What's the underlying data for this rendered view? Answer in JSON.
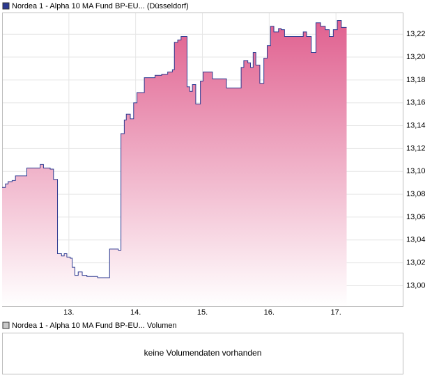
{
  "chart_data": {
    "type": "line",
    "drawstyle": "steps-post",
    "grid": true,
    "series": [
      {
        "name": "Nordea 1 - Alpha 10 MA Fund BP-EU... (Düsseldorf)",
        "color": "#2b3990",
        "area_color": "#e0608f",
        "x": [
          12.0,
          12.05,
          12.09,
          12.15,
          12.2,
          12.37,
          12.57,
          12.62,
          12.72,
          12.77,
          12.83,
          12.89,
          12.93,
          12.97,
          13.02,
          13.05,
          13.09,
          13.14,
          13.2,
          13.27,
          13.43,
          13.61,
          13.74,
          13.78,
          13.83,
          13.86,
          13.92,
          13.97,
          14.02,
          14.13,
          14.21,
          14.29,
          14.39,
          14.48,
          14.55,
          14.58,
          14.63,
          14.68,
          14.75,
          14.77,
          14.81,
          14.85,
          14.9,
          14.97,
          15.01,
          15.15,
          15.36,
          15.58,
          15.62,
          15.68,
          15.72,
          15.76,
          15.8,
          15.86,
          15.92,
          15.97,
          16.02,
          16.07,
          16.14,
          16.18,
          16.23,
          16.51,
          16.56,
          16.63,
          16.7,
          16.77,
          16.84,
          16.9,
          16.96,
          17.02,
          17.08,
          17.16
        ],
        "values": [
          13.086,
          13.089,
          13.091,
          13.092,
          13.096,
          13.103,
          13.106,
          13.103,
          13.102,
          13.093,
          13.028,
          13.026,
          13.028,
          13.025,
          13.024,
          13.016,
          13.009,
          13.012,
          13.009,
          13.008,
          13.007,
          13.032,
          13.031,
          13.133,
          13.145,
          13.15,
          13.146,
          13.16,
          13.169,
          13.182,
          13.182,
          13.184,
          13.185,
          13.187,
          13.189,
          13.213,
          13.215,
          13.218,
          13.218,
          13.174,
          13.17,
          13.176,
          13.159,
          13.179,
          13.187,
          13.181,
          13.173,
          13.191,
          13.197,
          13.195,
          13.191,
          13.204,
          13.193,
          13.177,
          13.199,
          13.21,
          13.227,
          13.222,
          13.225,
          13.224,
          13.218,
          13.222,
          13.218,
          13.204,
          13.23,
          13.227,
          13.224,
          13.218,
          13.224,
          13.232,
          13.226,
          13.226
        ]
      }
    ],
    "xlim": [
      12,
      18
    ],
    "ylim": [
      12.982,
      13.239
    ],
    "xticks": [
      {
        "value": 13,
        "label": "13."
      },
      {
        "value": 14,
        "label": "14."
      },
      {
        "value": 15,
        "label": "15."
      },
      {
        "value": 16,
        "label": "16."
      },
      {
        "value": 17,
        "label": "17."
      }
    ],
    "yticks": [
      {
        "value": 13.0,
        "label": "13,00"
      },
      {
        "value": 13.02,
        "label": "13,02"
      },
      {
        "value": 13.04,
        "label": "13,04"
      },
      {
        "value": 13.06,
        "label": "13,06"
      },
      {
        "value": 13.08,
        "label": "13,08"
      },
      {
        "value": 13.1,
        "label": "13,10"
      },
      {
        "value": 13.12,
        "label": "13,12"
      },
      {
        "value": 13.14,
        "label": "13,14"
      },
      {
        "value": 13.16,
        "label": "13,16"
      },
      {
        "value": 13.18,
        "label": "13,18"
      },
      {
        "value": 13.2,
        "label": "13,20"
      },
      {
        "value": 13.22,
        "label": "13,22"
      }
    ]
  },
  "volume_panel": {
    "legend": "Nordea 1 - Alpha 10 MA Fund BP-EU... Volumen",
    "message": "keine Volumendaten vorhanden"
  }
}
